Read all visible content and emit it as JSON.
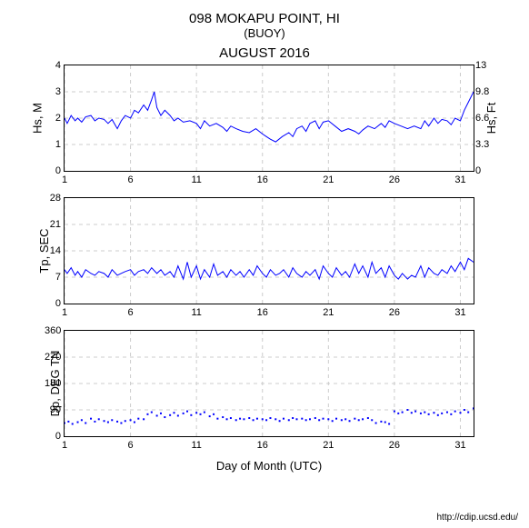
{
  "header": {
    "main_title": "098 MOKAPU POINT, HI",
    "subtitle": "(BUOY)",
    "month_title": "AUGUST 2016"
  },
  "xaxis": {
    "label": "Day of Month (UTC)",
    "min": 1,
    "max": 32,
    "ticks": [
      1,
      6,
      11,
      16,
      21,
      26,
      31
    ]
  },
  "charts": {
    "hs": {
      "y_left_label": "Hs, M",
      "y_right_label": "Hs, Ft",
      "ylim": [
        0,
        4
      ],
      "yticks_left": [
        0,
        1,
        2,
        3,
        4
      ],
      "yticks_right": [
        0,
        3.3,
        6.6,
        9.8,
        13
      ],
      "color": "#0000ff",
      "type": "line",
      "data": [
        [
          1,
          2.0
        ],
        [
          1.2,
          1.8
        ],
        [
          1.5,
          2.1
        ],
        [
          1.8,
          1.9
        ],
        [
          2,
          2.0
        ],
        [
          2.3,
          1.85
        ],
        [
          2.6,
          2.05
        ],
        [
          3,
          2.1
        ],
        [
          3.3,
          1.9
        ],
        [
          3.6,
          2.0
        ],
        [
          4,
          1.95
        ],
        [
          4.3,
          1.8
        ],
        [
          4.6,
          1.95
        ],
        [
          5,
          1.6
        ],
        [
          5.3,
          1.9
        ],
        [
          5.6,
          2.1
        ],
        [
          6,
          2.0
        ],
        [
          6.3,
          2.3
        ],
        [
          6.6,
          2.2
        ],
        [
          7,
          2.5
        ],
        [
          7.3,
          2.3
        ],
        [
          7.6,
          2.7
        ],
        [
          7.8,
          3.0
        ],
        [
          8,
          2.4
        ],
        [
          8.3,
          2.1
        ],
        [
          8.6,
          2.3
        ],
        [
          9,
          2.1
        ],
        [
          9.3,
          1.9
        ],
        [
          9.6,
          2.0
        ],
        [
          10,
          1.85
        ],
        [
          10.5,
          1.9
        ],
        [
          11,
          1.8
        ],
        [
          11.3,
          1.6
        ],
        [
          11.6,
          1.9
        ],
        [
          12,
          1.7
        ],
        [
          12.5,
          1.8
        ],
        [
          13,
          1.65
        ],
        [
          13.3,
          1.5
        ],
        [
          13.6,
          1.7
        ],
        [
          14,
          1.6
        ],
        [
          14.5,
          1.5
        ],
        [
          15,
          1.45
        ],
        [
          15.5,
          1.6
        ],
        [
          16,
          1.4
        ],
        [
          16.3,
          1.3
        ],
        [
          16.6,
          1.2
        ],
        [
          17,
          1.1
        ],
        [
          17.5,
          1.3
        ],
        [
          18,
          1.45
        ],
        [
          18.3,
          1.3
        ],
        [
          18.6,
          1.6
        ],
        [
          19,
          1.7
        ],
        [
          19.3,
          1.5
        ],
        [
          19.6,
          1.8
        ],
        [
          20,
          1.9
        ],
        [
          20.3,
          1.6
        ],
        [
          20.6,
          1.85
        ],
        [
          21,
          1.9
        ],
        [
          21.5,
          1.7
        ],
        [
          22,
          1.5
        ],
        [
          22.5,
          1.6
        ],
        [
          23,
          1.5
        ],
        [
          23.3,
          1.4
        ],
        [
          23.6,
          1.55
        ],
        [
          24,
          1.7
        ],
        [
          24.5,
          1.6
        ],
        [
          25,
          1.8
        ],
        [
          25.3,
          1.65
        ],
        [
          25.6,
          1.9
        ],
        [
          26,
          1.8
        ],
        [
          26.5,
          1.7
        ],
        [
          27,
          1.6
        ],
        [
          27.5,
          1.7
        ],
        [
          28,
          1.6
        ],
        [
          28.3,
          1.9
        ],
        [
          28.6,
          1.7
        ],
        [
          29,
          2.0
        ],
        [
          29.3,
          1.8
        ],
        [
          29.6,
          1.95
        ],
        [
          30,
          1.9
        ],
        [
          30.3,
          1.75
        ],
        [
          30.6,
          2.0
        ],
        [
          31,
          1.9
        ],
        [
          31.3,
          2.3
        ],
        [
          31.6,
          2.6
        ],
        [
          32,
          3.0
        ]
      ]
    },
    "tp": {
      "y_left_label": "Tp, SEC",
      "ylim": [
        0,
        28
      ],
      "yticks_left": [
        0,
        7,
        14,
        21,
        28
      ],
      "color": "#0000ff",
      "type": "line",
      "data": [
        [
          1,
          9
        ],
        [
          1.2,
          8
        ],
        [
          1.5,
          9.5
        ],
        [
          1.8,
          7.5
        ],
        [
          2,
          8.5
        ],
        [
          2.3,
          7
        ],
        [
          2.6,
          9
        ],
        [
          3,
          8
        ],
        [
          3.3,
          7.5
        ],
        [
          3.6,
          8.5
        ],
        [
          4,
          8
        ],
        [
          4.3,
          7
        ],
        [
          4.6,
          9
        ],
        [
          5,
          7.5
        ],
        [
          5.3,
          8
        ],
        [
          5.6,
          8.5
        ],
        [
          6,
          9
        ],
        [
          6.3,
          7.5
        ],
        [
          6.6,
          8.5
        ],
        [
          7,
          9
        ],
        [
          7.3,
          8
        ],
        [
          7.6,
          9.5
        ],
        [
          8,
          8
        ],
        [
          8.3,
          9
        ],
        [
          8.6,
          7.5
        ],
        [
          9,
          8.5
        ],
        [
          9.3,
          7
        ],
        [
          9.6,
          10
        ],
        [
          10,
          6.5
        ],
        [
          10.3,
          11
        ],
        [
          10.6,
          7
        ],
        [
          11,
          10
        ],
        [
          11.3,
          6.5
        ],
        [
          11.6,
          9
        ],
        [
          12,
          7
        ],
        [
          12.3,
          10.5
        ],
        [
          12.6,
          7.5
        ],
        [
          13,
          8.5
        ],
        [
          13.3,
          7
        ],
        [
          13.6,
          9
        ],
        [
          14,
          7.5
        ],
        [
          14.3,
          8.5
        ],
        [
          14.6,
          7
        ],
        [
          15,
          9
        ],
        [
          15.3,
          7.5
        ],
        [
          15.6,
          10
        ],
        [
          16,
          8
        ],
        [
          16.3,
          7
        ],
        [
          16.6,
          9
        ],
        [
          17,
          7.5
        ],
        [
          17.3,
          8
        ],
        [
          17.6,
          9
        ],
        [
          18,
          7
        ],
        [
          18.3,
          9.5
        ],
        [
          18.6,
          8
        ],
        [
          19,
          7
        ],
        [
          19.3,
          8.5
        ],
        [
          19.6,
          7.5
        ],
        [
          20,
          9
        ],
        [
          20.3,
          6.5
        ],
        [
          20.6,
          10
        ],
        [
          21,
          8
        ],
        [
          21.3,
          7
        ],
        [
          21.6,
          9.5
        ],
        [
          22,
          7.5
        ],
        [
          22.3,
          8.5
        ],
        [
          22.6,
          7
        ],
        [
          23,
          10.5
        ],
        [
          23.3,
          8
        ],
        [
          23.6,
          10
        ],
        [
          24,
          7
        ],
        [
          24.3,
          11
        ],
        [
          24.6,
          8
        ],
        [
          25,
          9.5
        ],
        [
          25.3,
          7
        ],
        [
          25.6,
          10
        ],
        [
          26,
          7.5
        ],
        [
          26.3,
          6.5
        ],
        [
          26.6,
          8
        ],
        [
          27,
          6.5
        ],
        [
          27.3,
          7.5
        ],
        [
          27.6,
          7
        ],
        [
          28,
          10
        ],
        [
          28.3,
          7
        ],
        [
          28.6,
          9.5
        ],
        [
          29,
          8
        ],
        [
          29.3,
          7.5
        ],
        [
          29.6,
          9
        ],
        [
          30,
          8
        ],
        [
          30.3,
          10
        ],
        [
          30.6,
          8.5
        ],
        [
          31,
          11
        ],
        [
          31.3,
          9
        ],
        [
          31.6,
          12
        ],
        [
          32,
          11
        ]
      ]
    },
    "dp": {
      "y_left_label": "Dp, DEG TN",
      "ylim": [
        0,
        360
      ],
      "yticks_left": [
        0,
        90,
        180,
        270,
        360
      ],
      "color": "#0000ff",
      "type": "scatter",
      "data": [
        [
          1,
          45
        ],
        [
          1.3,
          50
        ],
        [
          1.6,
          42
        ],
        [
          2,
          48
        ],
        [
          2.3,
          55
        ],
        [
          2.6,
          45
        ],
        [
          3,
          60
        ],
        [
          3.3,
          50
        ],
        [
          3.6,
          58
        ],
        [
          4,
          52
        ],
        [
          4.3,
          48
        ],
        [
          4.6,
          55
        ],
        [
          5,
          50
        ],
        [
          5.3,
          45
        ],
        [
          5.6,
          52
        ],
        [
          6,
          55
        ],
        [
          6.3,
          48
        ],
        [
          6.6,
          60
        ],
        [
          7,
          58
        ],
        [
          7.3,
          75
        ],
        [
          7.6,
          82
        ],
        [
          8,
          70
        ],
        [
          8.3,
          78
        ],
        [
          8.6,
          65
        ],
        [
          9,
          72
        ],
        [
          9.3,
          80
        ],
        [
          9.6,
          70
        ],
        [
          10,
          78
        ],
        [
          10.3,
          85
        ],
        [
          10.6,
          72
        ],
        [
          11,
          80
        ],
        [
          11.3,
          75
        ],
        [
          11.6,
          82
        ],
        [
          12,
          68
        ],
        [
          12.3,
          75
        ],
        [
          12.6,
          60
        ],
        [
          13,
          65
        ],
        [
          13.3,
          58
        ],
        [
          13.6,
          62
        ],
        [
          14,
          55
        ],
        [
          14.3,
          60
        ],
        [
          14.6,
          58
        ],
        [
          15,
          62
        ],
        [
          15.3,
          55
        ],
        [
          15.6,
          60
        ],
        [
          16,
          58
        ],
        [
          16.3,
          55
        ],
        [
          16.6,
          62
        ],
        [
          17,
          58
        ],
        [
          17.3,
          52
        ],
        [
          17.6,
          60
        ],
        [
          18,
          55
        ],
        [
          18.3,
          62
        ],
        [
          18.6,
          58
        ],
        [
          19,
          60
        ],
        [
          19.3,
          55
        ],
        [
          19.6,
          58
        ],
        [
          20,
          62
        ],
        [
          20.3,
          55
        ],
        [
          20.6,
          60
        ],
        [
          21,
          58
        ],
        [
          21.3,
          52
        ],
        [
          21.6,
          60
        ],
        [
          22,
          55
        ],
        [
          22.3,
          58
        ],
        [
          22.6,
          52
        ],
        [
          23,
          60
        ],
        [
          23.3,
          55
        ],
        [
          23.6,
          58
        ],
        [
          24,
          62
        ],
        [
          24.3,
          55
        ],
        [
          24.6,
          45
        ],
        [
          25,
          50
        ],
        [
          25.3,
          48
        ],
        [
          25.6,
          42
        ],
        [
          26,
          85
        ],
        [
          26.3,
          78
        ],
        [
          26.6,
          82
        ],
        [
          27,
          90
        ],
        [
          27.3,
          80
        ],
        [
          27.6,
          85
        ],
        [
          28,
          78
        ],
        [
          28.3,
          82
        ],
        [
          28.6,
          75
        ],
        [
          29,
          80
        ],
        [
          29.3,
          72
        ],
        [
          29.6,
          78
        ],
        [
          30,
          82
        ],
        [
          30.3,
          75
        ],
        [
          30.6,
          85
        ],
        [
          31,
          80
        ],
        [
          31.3,
          90
        ],
        [
          31.6,
          82
        ],
        [
          32,
          95
        ]
      ]
    }
  },
  "footer": {
    "link": "http://cdip.ucsd.edu/"
  },
  "style": {
    "grid_color": "#cccccc",
    "line_color": "#0000ff",
    "background": "#ffffff",
    "title_fontsize": 15,
    "label_fontsize": 13,
    "tick_fontsize": 11
  }
}
